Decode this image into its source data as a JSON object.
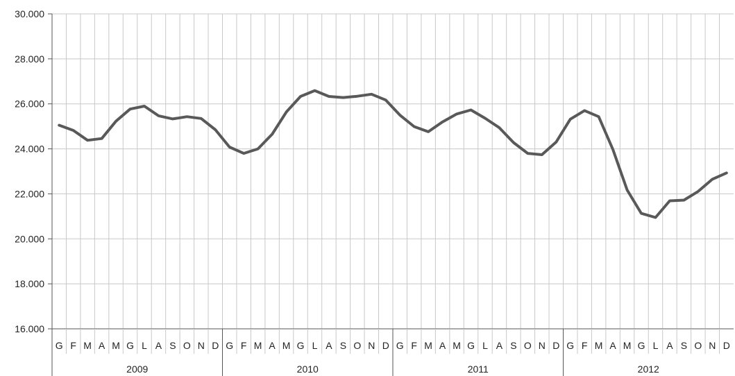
{
  "chart_data": {
    "type": "line",
    "ylim": [
      16000,
      30000
    ],
    "yticks": [
      "16.000",
      "18.000",
      "20.000",
      "22.000",
      "24.000",
      "26.000",
      "28.000",
      "30.000"
    ],
    "ytick_values": [
      16000,
      18000,
      20000,
      22000,
      24000,
      26000,
      28000,
      30000
    ],
    "month_labels": [
      "G",
      "F",
      "M",
      "A",
      "M",
      "G",
      "L",
      "A",
      "S",
      "O",
      "N",
      "D"
    ],
    "years": [
      "2009",
      "2010",
      "2011",
      "2012"
    ],
    "grid": true,
    "legend": "none",
    "series": [
      {
        "values": [
          25050,
          24820,
          24380,
          24460,
          25230,
          25770,
          25900,
          25470,
          25330,
          25430,
          25350,
          24850,
          24080,
          23800,
          24000,
          24650,
          25640,
          26330,
          26590,
          26330,
          26280,
          26340,
          26430,
          26170,
          25500,
          24990,
          24760,
          25200,
          25550,
          25730,
          25360,
          24940,
          24280,
          23800,
          23740,
          24300,
          25320,
          25700,
          25430,
          23970,
          22170,
          21130,
          20950,
          21690,
          21720,
          22110,
          22650,
          22930
        ]
      }
    ]
  },
  "colors": {
    "line": "#595959",
    "grid": "#c8c8c8",
    "axis": "#555555"
  }
}
